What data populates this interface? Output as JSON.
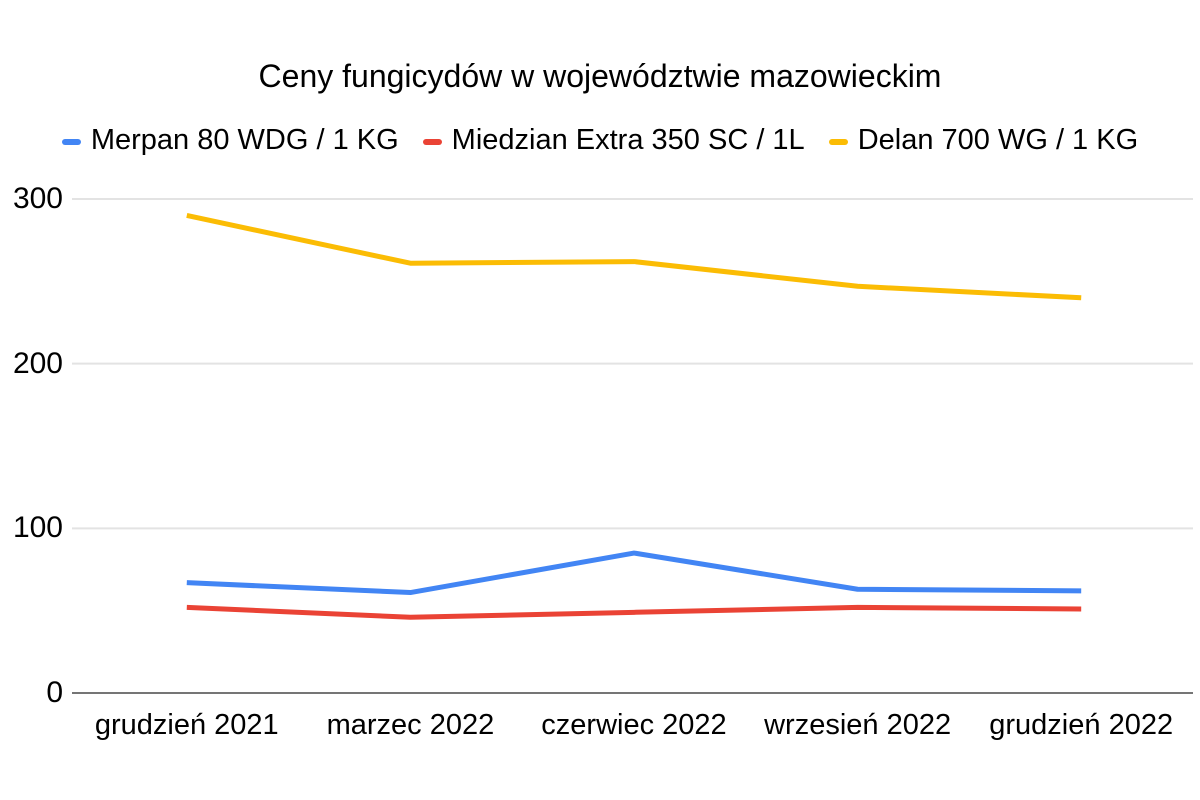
{
  "chart_data": {
    "type": "line",
    "title": "Ceny fungicydów w województwie mazowieckim",
    "xlabel": "",
    "ylabel": "",
    "categories": [
      "grudzień 2021",
      "marzec 2022",
      "czerwiec 2022",
      "wrzesień 2022",
      "grudzień 2022"
    ],
    "series": [
      {
        "name": "Merpan 80 WDG / 1 KG",
        "color": "#4285f4",
        "values": [
          67,
          61,
          85,
          63,
          62
        ]
      },
      {
        "name": "Miedzian Extra 350 SC / 1L",
        "color": "#ea4335",
        "values": [
          52,
          46,
          49,
          52,
          51
        ]
      },
      {
        "name": "Delan 700 WG / 1 KG",
        "color": "#fbbc04",
        "values": [
          290,
          261,
          262,
          247,
          240
        ]
      }
    ],
    "yticks": [
      0,
      100,
      200,
      300
    ],
    "ylim": [
      0,
      300
    ],
    "grid": true,
    "legend_position": "top",
    "colors": {
      "background": "#ffffff",
      "text": "#000000",
      "gridline": "#e3e3e3",
      "baseline": "#757575"
    }
  }
}
